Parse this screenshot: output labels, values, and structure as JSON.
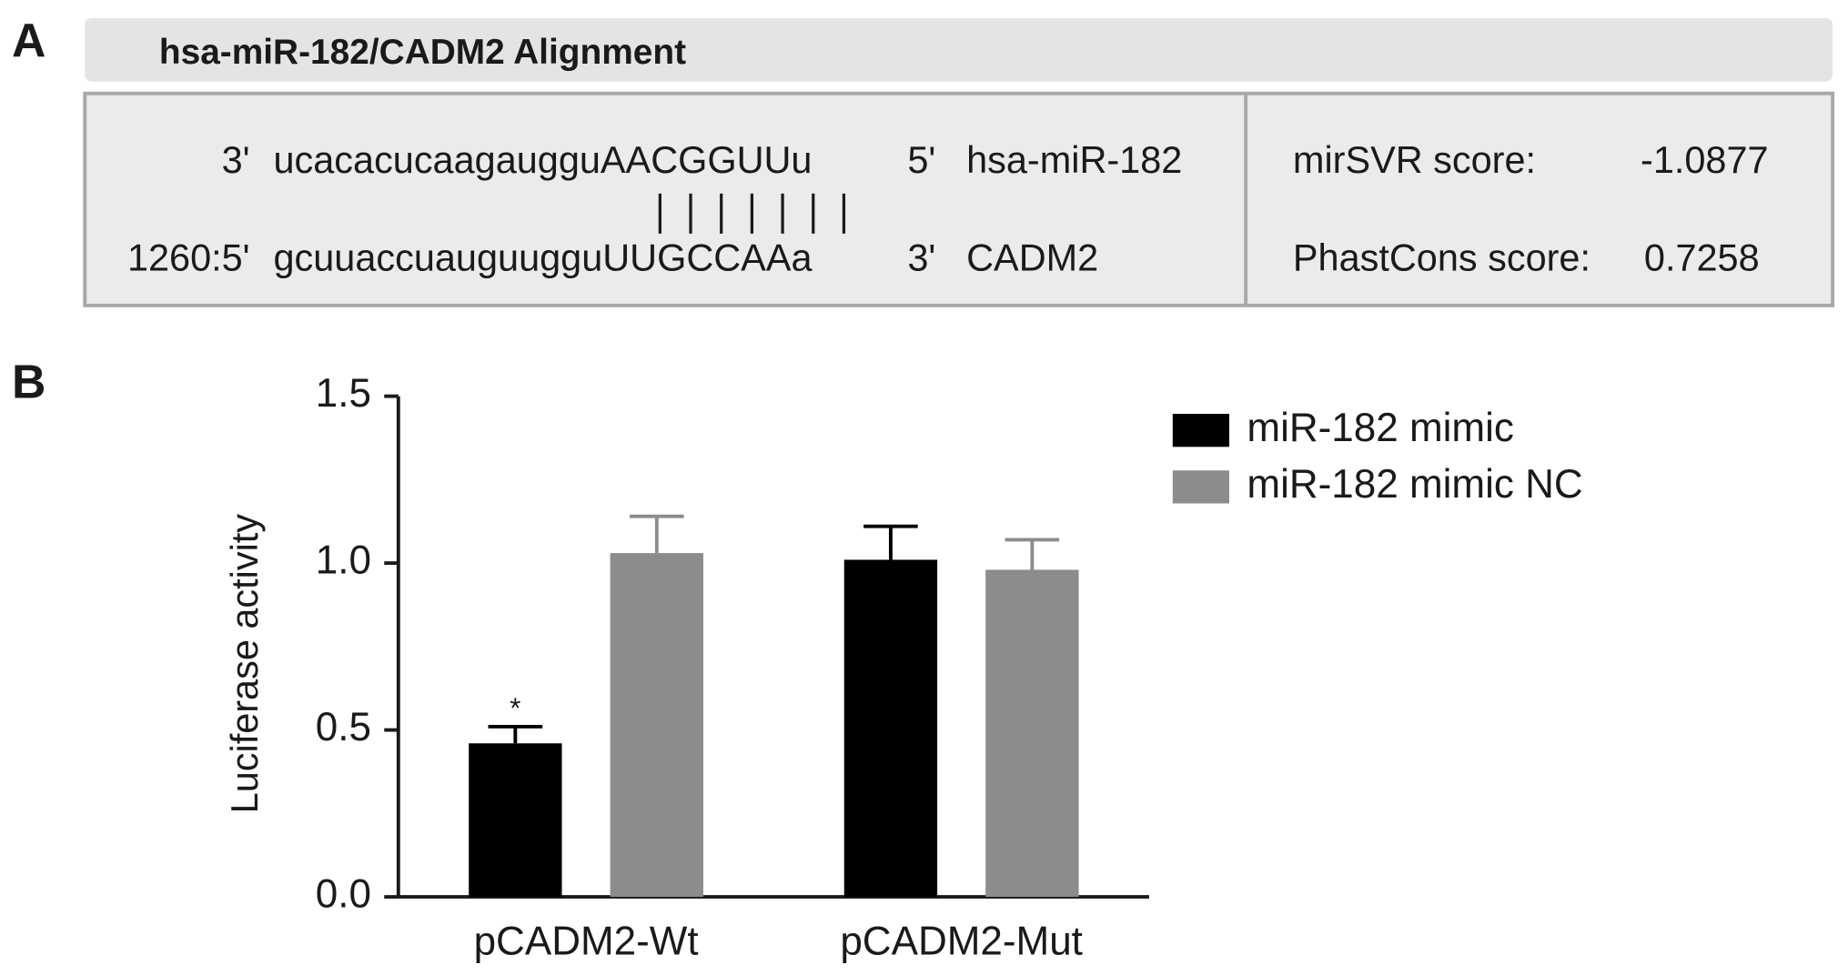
{
  "panel_a": {
    "label": "A",
    "title": "hsa-miR-182/CADM2 Alignment",
    "mirna_row": {
      "prefix": "3'",
      "sequence": "ucacacucaagaugguAACGGUUu",
      "suffix": "5'",
      "name": "hsa-miR-182"
    },
    "target_row": {
      "prefix": "1260:5'",
      "sequence": "gcuuaccuauguugguUUGCCAAa",
      "suffix": "3'",
      "name": "CADM2"
    },
    "scores": [
      {
        "label": "mirSVR score:",
        "value": -1.0877
      },
      {
        "label": "PhastCons score:",
        "value": 0.7258
      }
    ]
  },
  "chart_data": {
    "type": "bar",
    "panel_label": "B",
    "y_label": "Luciferase activity",
    "categories": [
      "pCADM2-Wt",
      "pCADM2-Mut"
    ],
    "series": [
      {
        "name": "miR-182 mimic",
        "color": "#000000",
        "values": [
          0.46,
          1.01
        ],
        "errors": [
          0.05,
          0.1
        ],
        "significance": [
          "*",
          null
        ]
      },
      {
        "name": "miR-182 mimic NC",
        "color": "#8c8c8c",
        "values": [
          1.03,
          0.98
        ],
        "errors": [
          0.11,
          0.09
        ]
      }
    ],
    "ylim": [
      0,
      1.5
    ],
    "yticks": [
      {
        "value": 0,
        "label": "0.0"
      },
      0.5,
      {
        "value": 1,
        "label": "1.0"
      },
      1.5
    ]
  }
}
